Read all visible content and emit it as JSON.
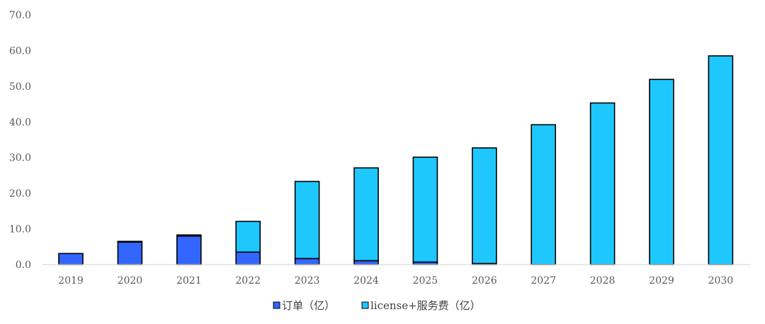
{
  "chart_data": {
    "type": "bar",
    "stacked": true,
    "categories": [
      "2019",
      "2020",
      "2021",
      "2022",
      "2023",
      "2024",
      "2025",
      "2026",
      "2027",
      "2028",
      "2029",
      "2030"
    ],
    "series": [
      {
        "name": "订单（亿）",
        "color": "#3366ff",
        "values": [
          3.1,
          6.3,
          8.0,
          3.5,
          1.7,
          1.1,
          0.7,
          0.3,
          0,
          0,
          0,
          0
        ]
      },
      {
        "name": "license+服务费（亿）",
        "color": "#1ec8ff",
        "values": [
          0,
          0.2,
          0.3,
          8.6,
          21.6,
          26.0,
          29.4,
          32.4,
          39.2,
          45.3,
          51.9,
          58.5
        ]
      }
    ],
    "ylim": [
      0,
      70
    ],
    "yticks": [
      "0.0",
      "10.0",
      "20.0",
      "30.0",
      "40.0",
      "50.0",
      "60.0",
      "70.0"
    ],
    "grid": false,
    "legend_position": "bottom"
  }
}
